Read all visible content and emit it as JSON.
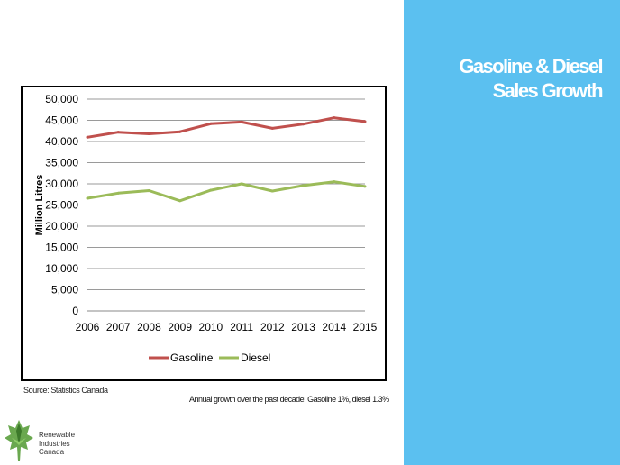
{
  "slide": {
    "title_line1": "Gasoline & Diesel",
    "title_line2": "Sales Growth",
    "source": "Source: Statistics Canada",
    "note": "Annual growth over the past decade: Gasoline 1%, diesel 1.3%",
    "panel_color": "#5bc0f0"
  },
  "logo": {
    "line1": "Renewable",
    "line2": "Industries",
    "line3": "Canada",
    "icon": "maple-leaf-icon"
  },
  "chart_data": {
    "type": "line",
    "x": [
      "2006",
      "2007",
      "2008",
      "2009",
      "2010",
      "2011",
      "2012",
      "2013",
      "2014",
      "2015"
    ],
    "ylabel": "Million Litres",
    "xlabel": "",
    "ylim": [
      0,
      50000
    ],
    "yticks": [
      "0",
      "5,000",
      "10,000",
      "15,000",
      "20,000",
      "25,000",
      "30,000",
      "35,000",
      "40,000",
      "45,000",
      "50,000"
    ],
    "grid": true,
    "legend_position": "bottom",
    "series": [
      {
        "name": "Gasoline",
        "color": "#c0504d",
        "values": [
          41000,
          42200,
          41800,
          42300,
          44200,
          44600,
          43100,
          44100,
          45600,
          44700
        ]
      },
      {
        "name": "Diesel",
        "color": "#9bbb59",
        "values": [
          26600,
          27800,
          28400,
          26000,
          28500,
          30000,
          28300,
          29600,
          30500,
          29400
        ]
      }
    ]
  }
}
